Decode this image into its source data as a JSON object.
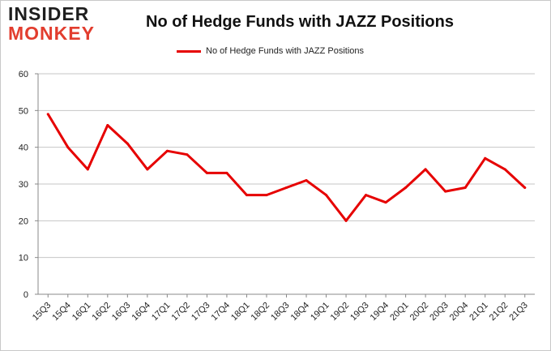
{
  "logo": {
    "line1": "INSIDER",
    "line2": "MONKEY"
  },
  "chart_data": {
    "type": "line",
    "title": "No of Hedge Funds with JAZZ Positions",
    "xlabel": "",
    "ylabel": "",
    "categories": [
      "15Q3",
      "15Q4",
      "16Q1",
      "16Q2",
      "16Q3",
      "16Q4",
      "17Q1",
      "17Q2",
      "17Q3",
      "17Q4",
      "18Q1",
      "18Q2",
      "18Q3",
      "18Q4",
      "19Q1",
      "19Q2",
      "19Q3",
      "19Q4",
      "20Q1",
      "20Q2",
      "20Q3",
      "20Q4",
      "21Q1",
      "21Q2",
      "21Q3"
    ],
    "series": [
      {
        "name": "No of Hedge Funds with JAZZ Positions",
        "color": "#e60000",
        "values": [
          49,
          40,
          34,
          46,
          41,
          34,
          39,
          38,
          33,
          33,
          27,
          27,
          29,
          31,
          27,
          20,
          27,
          25,
          29,
          34,
          28,
          29,
          37,
          34,
          29
        ]
      }
    ],
    "ylim": [
      0,
      60
    ],
    "yticks": [
      0,
      10,
      20,
      30,
      40,
      50,
      60
    ],
    "grid": true,
    "legend_position": "top-center"
  }
}
